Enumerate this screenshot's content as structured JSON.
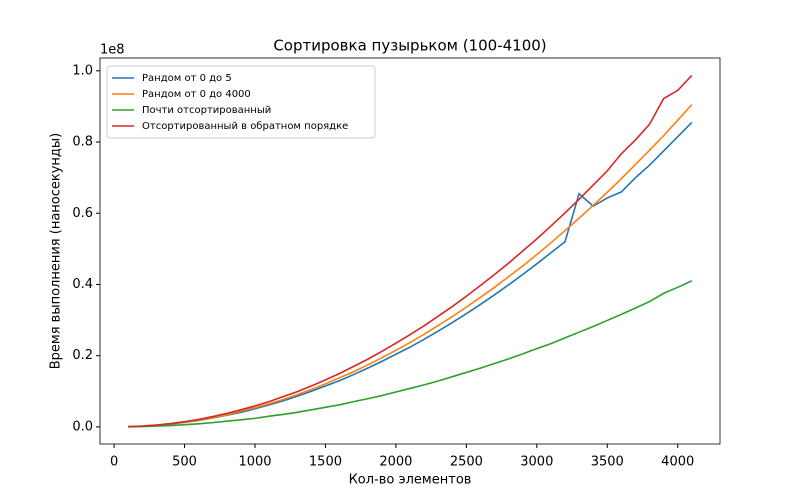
{
  "chart_data": {
    "type": "line",
    "title": "Сортировка пузырьком (100-4100)",
    "xlabel": "Кол-во элементов",
    "ylabel": "Время выполнения (наносекунды)",
    "y_offset_label": "1e8",
    "x": [
      100,
      200,
      300,
      400,
      500,
      600,
      700,
      800,
      900,
      1000,
      1100,
      1200,
      1300,
      1400,
      1500,
      1600,
      1700,
      1800,
      1900,
      2000,
      2100,
      2200,
      2300,
      2400,
      2500,
      2600,
      2700,
      2800,
      2900,
      3000,
      3100,
      3200,
      3300,
      3400,
      3500,
      3600,
      3700,
      3800,
      3900,
      4000,
      4100
    ],
    "series": [
      {
        "name": "Рандом от 0 до 5",
        "color": "#1f77b4",
        "values": [
          0.0005,
          0.002,
          0.0046,
          0.0081,
          0.0127,
          0.018,
          0.025,
          0.033,
          0.041,
          0.051,
          0.062,
          0.073,
          0.086,
          0.1,
          0.115,
          0.13,
          0.147,
          0.165,
          0.184,
          0.204,
          0.224,
          0.246,
          0.269,
          0.293,
          0.318,
          0.344,
          0.371,
          0.399,
          0.428,
          0.458,
          0.489,
          0.52,
          0.655,
          0.62,
          0.643,
          0.66,
          0.7,
          0.735,
          0.775,
          0.815,
          0.855
        ]
      },
      {
        "name": "Рандом от 0 до 4000",
        "color": "#ff7f0e",
        "values": [
          0.0005,
          0.0022,
          0.0048,
          0.0086,
          0.0135,
          0.019,
          0.026,
          0.034,
          0.044,
          0.054,
          0.065,
          0.077,
          0.091,
          0.105,
          0.121,
          0.138,
          0.155,
          0.174,
          0.194,
          0.215,
          0.237,
          0.26,
          0.285,
          0.31,
          0.336,
          0.364,
          0.392,
          0.422,
          0.452,
          0.484,
          0.517,
          0.551,
          0.586,
          0.622,
          0.659,
          0.697,
          0.737,
          0.777,
          0.818,
          0.861,
          0.905
        ]
      },
      {
        "name": "Почти отсортированный",
        "color": "#2ca02c",
        "values": [
          0.0002,
          0.001,
          0.0022,
          0.0039,
          0.0061,
          0.0088,
          0.012,
          0.016,
          0.02,
          0.024,
          0.03,
          0.035,
          0.041,
          0.048,
          0.055,
          0.062,
          0.071,
          0.079,
          0.088,
          0.098,
          0.108,
          0.118,
          0.129,
          0.141,
          0.153,
          0.165,
          0.178,
          0.191,
          0.205,
          0.22,
          0.234,
          0.25,
          0.266,
          0.282,
          0.299,
          0.316,
          0.334,
          0.352,
          0.375,
          0.392,
          0.41
        ]
      },
      {
        "name": "Отсортированный в обратном порядке",
        "color": "#d62728",
        "values": [
          0.0006,
          0.0023,
          0.0053,
          0.0094,
          0.0147,
          0.021,
          0.029,
          0.038,
          0.048,
          0.059,
          0.071,
          0.085,
          0.099,
          0.115,
          0.132,
          0.15,
          0.17,
          0.19,
          0.212,
          0.235,
          0.259,
          0.284,
          0.311,
          0.338,
          0.367,
          0.397,
          0.428,
          0.46,
          0.494,
          0.528,
          0.564,
          0.601,
          0.639,
          0.679,
          0.719,
          0.767,
          0.806,
          0.85,
          0.922,
          0.945,
          0.987
        ]
      }
    ],
    "xlim": [
      -100,
      4300
    ],
    "ylim": [
      -0.048,
      1.036
    ],
    "xticks": [
      0,
      500,
      1000,
      1500,
      2000,
      2500,
      3000,
      3500,
      4000
    ],
    "yticks": [
      {
        "value": 0,
        "label": "0.0"
      },
      0.2,
      0.4,
      0.6,
      0.8,
      {
        "value": 1,
        "label": "1.0"
      }
    ],
    "legend": "upper left"
  }
}
